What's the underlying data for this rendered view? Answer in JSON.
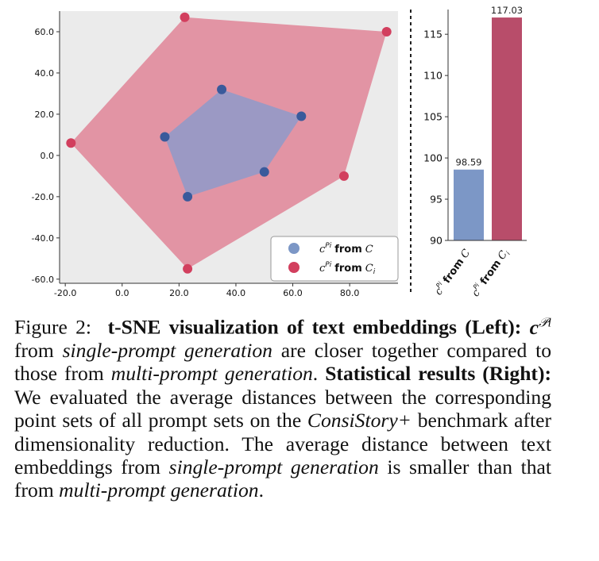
{
  "chart_data": [
    {
      "type": "scatter",
      "xlim": [
        -22,
        97
      ],
      "ylim": [
        -62,
        70
      ],
      "xticks": [
        "-20.0",
        "0.0",
        "20.0",
        "40.0",
        "60.0",
        "80.0"
      ],
      "yticks": [
        "60.0",
        "40.0",
        "20.0",
        "0.0",
        "-20.0",
        "-40.0",
        "-60.0"
      ],
      "grid": false,
      "legend_position": "bottom-right",
      "background": "#ebebeb",
      "series": [
        {
          "name": "cPi from C",
          "color": "#3a5a9b",
          "fill": "#9b99c4",
          "points": [
            [
              35,
              32
            ],
            [
              63,
              19
            ],
            [
              50,
              -8
            ],
            [
              23,
              -20
            ],
            [
              15,
              9
            ]
          ]
        },
        {
          "name": "cPi from Ci",
          "color": "#d23f5e",
          "fill": "#e294a4",
          "points": [
            [
              22,
              67
            ],
            [
              93,
              60
            ],
            [
              78,
              -10
            ],
            [
              23,
              -55
            ],
            [
              -18,
              6
            ]
          ]
        }
      ]
    },
    {
      "type": "bar",
      "categories": [
        "cPi from C",
        "cPi from Ci"
      ],
      "values": [
        98.59,
        117.03
      ],
      "value_labels": [
        "98.59",
        "117.03"
      ],
      "colors": [
        "#7c97c6",
        "#b84d6a"
      ],
      "ylim": [
        90,
        118
      ],
      "yticks": [
        "90",
        "95",
        "100",
        "105",
        "110",
        "115"
      ],
      "grid": false
    }
  ],
  "legend": {
    "symbol": "c",
    "superscript": "Pi",
    "item1_from": "from",
    "item1_set": "C",
    "item2_from": "from",
    "item2_set": "C",
    "item2_sub": "i"
  },
  "caption": {
    "label": "Figure 2:",
    "title": "t-SNE visualization of text embeddings (Left):",
    "symbol": "c",
    "symbol_sup": "𝒫i",
    "p1a": "from",
    "p1_em": "single-prompt generation",
    "p1b": "are closer together compared to those from",
    "p1_em2": "multi-prompt generation",
    "p1c": ".",
    "stat_bold": "Statistical results (Right):",
    "p2a": "We evaluated the average distances between the corresponding point sets of all prompt sets on the",
    "p2_em": "ConsiStory+",
    "p2b": "benchmark after dimensionality reduction. The average distance between text embeddings from",
    "p2_em2": "single-prompt generation",
    "p2c": "is smaller than that from",
    "p2_em3": "multi-prompt generation",
    "p2d": "."
  }
}
